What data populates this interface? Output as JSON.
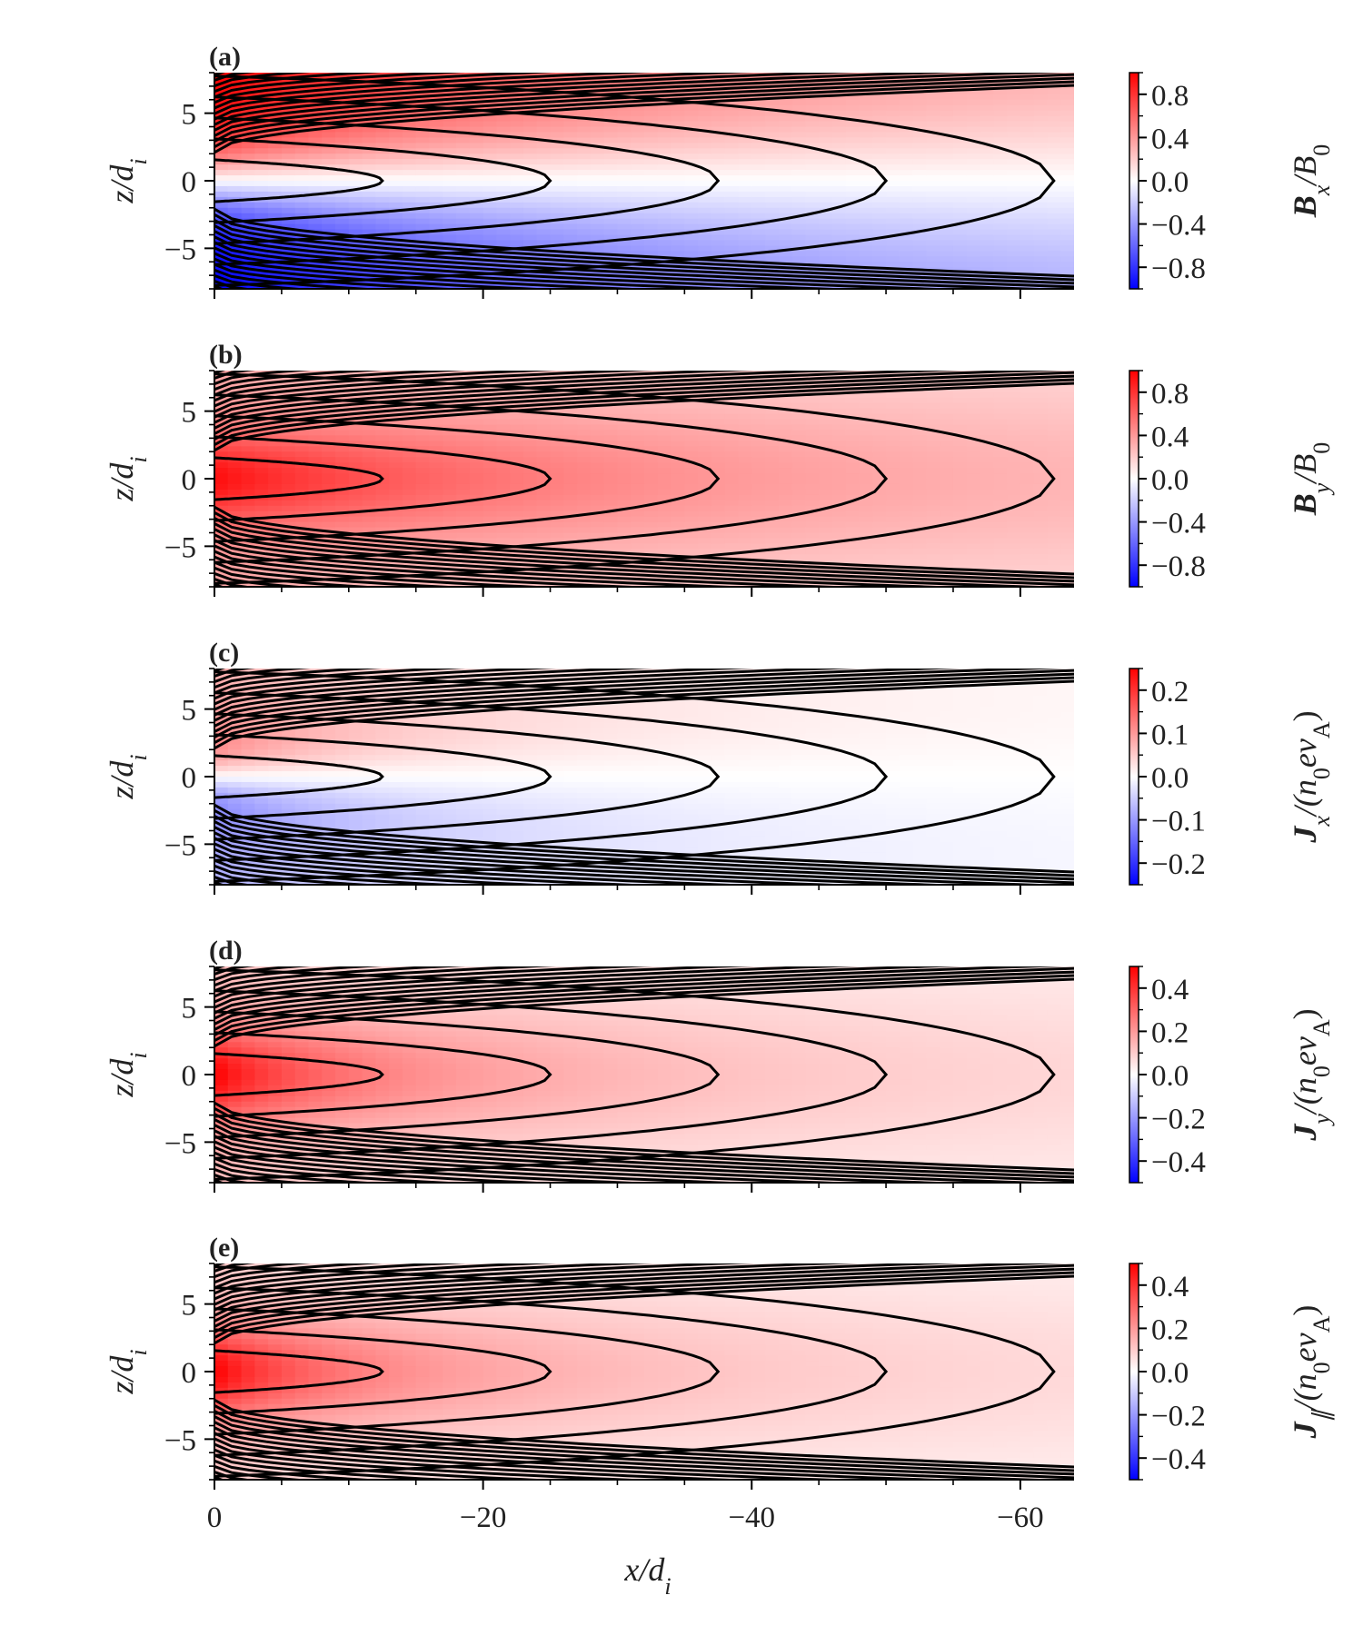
{
  "chart_data": {
    "type": "contour",
    "xlabel": "x/d_i",
    "ylabel": "z/d_i",
    "xlim": [
      0,
      -64
    ],
    "ylim": [
      -8,
      8
    ],
    "x_ticks": [
      {
        "value": 0,
        "label": "0"
      },
      {
        "value": -20,
        "label": "−20"
      },
      {
        "value": -40,
        "label": "−40"
      },
      {
        "value": -60,
        "label": "−60"
      }
    ],
    "y_ticks": [
      {
        "value": 5,
        "label": "5"
      },
      {
        "value": 0,
        "label": "0"
      },
      {
        "value": -5,
        "label": "−5"
      }
    ],
    "field_lines": {
      "description": "magnetic field lines of a Harris-like tail current sheet",
      "closed_line_tips_x": [
        -12.5,
        -25,
        -37.5,
        -50,
        -62.5
      ]
    },
    "panels": [
      {
        "label": "(a)",
        "quantity": "Bx",
        "colorbar_label": "B_x/B_0",
        "colorbar_range": [
          -1,
          1
        ],
        "colorbar_ticks": [
          {
            "value": 0.8,
            "label": "0.8"
          },
          {
            "value": 0.4,
            "label": "0.4"
          },
          {
            "value": 0.0,
            "label": "0.0"
          },
          {
            "value": -0.4,
            "label": "−0.4"
          },
          {
            "value": -0.8,
            "label": "−0.8"
          }
        ]
      },
      {
        "label": "(b)",
        "quantity": "By",
        "colorbar_label": "B_y/B_0",
        "colorbar_range": [
          -1,
          1
        ],
        "colorbar_ticks": [
          {
            "value": 0.8,
            "label": "0.8"
          },
          {
            "value": 0.4,
            "label": "0.4"
          },
          {
            "value": 0.0,
            "label": "0.0"
          },
          {
            "value": -0.4,
            "label": "−0.4"
          },
          {
            "value": -0.8,
            "label": "−0.8"
          }
        ]
      },
      {
        "label": "(c)",
        "quantity": "Jx",
        "colorbar_label": "J_x/(n_0ev_A)",
        "colorbar_range": [
          -0.25,
          0.25
        ],
        "colorbar_ticks": [
          {
            "value": 0.2,
            "label": "0.2"
          },
          {
            "value": 0.1,
            "label": "0.1"
          },
          {
            "value": 0.0,
            "label": "0.0"
          },
          {
            "value": -0.1,
            "label": "−0.1"
          },
          {
            "value": -0.2,
            "label": "−0.2"
          }
        ]
      },
      {
        "label": "(d)",
        "quantity": "Jy",
        "colorbar_label": "J_y/(n_0ev_A)",
        "colorbar_range": [
          -0.5,
          0.5
        ],
        "colorbar_ticks": [
          {
            "value": 0.4,
            "label": "0.4"
          },
          {
            "value": 0.2,
            "label": "0.2"
          },
          {
            "value": 0.0,
            "label": "0.0"
          },
          {
            "value": -0.2,
            "label": "−0.2"
          },
          {
            "value": -0.4,
            "label": "−0.4"
          }
        ]
      },
      {
        "label": "(e)",
        "quantity": "Jpar",
        "colorbar_label": "J_∥/(n_0ev_A)",
        "colorbar_range": [
          -0.5,
          0.5
        ],
        "colorbar_ticks": [
          {
            "value": 0.4,
            "label": "0.4"
          },
          {
            "value": 0.2,
            "label": "0.2"
          },
          {
            "value": 0.0,
            "label": "0.0"
          },
          {
            "value": -0.2,
            "label": "−0.2"
          },
          {
            "value": -0.4,
            "label": "−0.4"
          }
        ]
      }
    ]
  },
  "colors": {
    "positive": "#ff0000",
    "zero": "#ffffff",
    "negative": "#0000ff",
    "lines": "#000000",
    "text": "#222222"
  },
  "text": {
    "panel_labels": [
      "(a)",
      "(b)",
      "(c)",
      "(d)",
      "(e)"
    ],
    "x_axis_label": "x/d_i",
    "y_axis_label": "z/d_i",
    "cbar_labels": {
      "a": {
        "main": "B",
        "sub": "x",
        "tail": "/B",
        "tail_sub": "0"
      },
      "b": {
        "main": "B",
        "sub": "y",
        "tail": "/B",
        "tail_sub": "0"
      },
      "c": {
        "main": "J",
        "sub": "x",
        "tail": "/(n",
        "tail_sub": "0",
        "tail2": "ev",
        "tail2_sub": "A",
        "close": ")"
      },
      "d": {
        "main": "J",
        "sub": "y",
        "tail": "/(n",
        "tail_sub": "0",
        "tail2": "ev",
        "tail2_sub": "A",
        "close": ")"
      },
      "e": {
        "main": "J",
        "sub": "∥",
        "tail": "/(n",
        "tail_sub": "0",
        "tail2": "ev",
        "tail2_sub": "A",
        "close": ")"
      }
    }
  }
}
